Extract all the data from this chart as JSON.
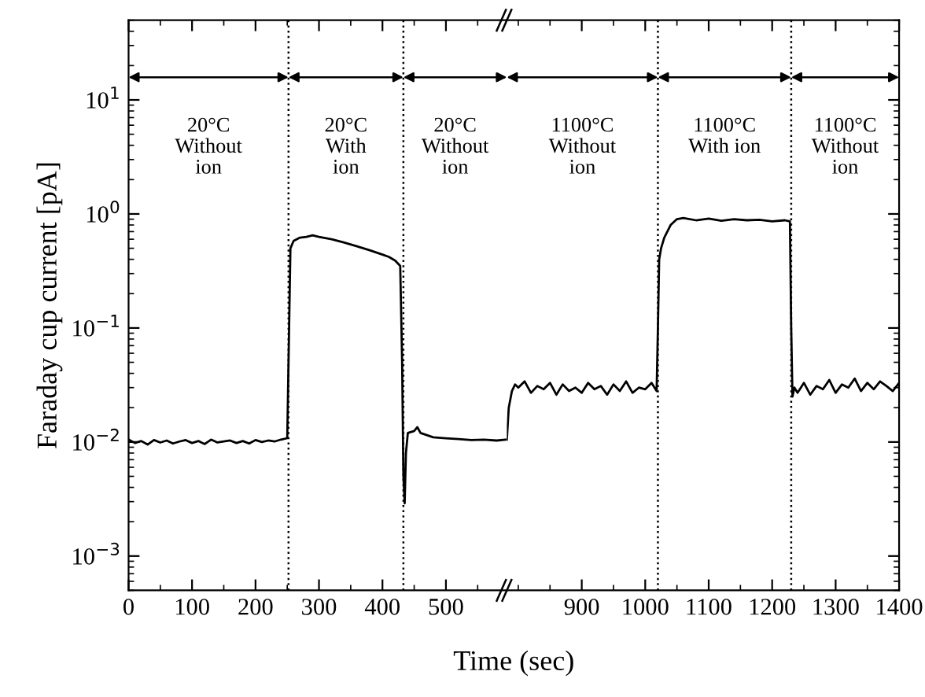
{
  "chart_data": [
    {
      "type": "line",
      "ylabel": "Faraday cup current [pA]",
      "xlabel": "Time (sec)",
      "log": "y",
      "xlim": [
        0,
        596
      ],
      "ylim": [
        0.0005,
        50
      ],
      "xticks": [
        0,
        100,
        200,
        300,
        400,
        500
      ],
      "yticks": [
        {
          "value": 0.001,
          "label": "10$^{−3}$"
        },
        {
          "value": 0.01,
          "label": "10$^{−2}$"
        },
        {
          "value": 0.1,
          "label": "10$^{−1}$"
        },
        {
          "value": 1,
          "label": "10$^{0}$"
        },
        {
          "value": 10,
          "label": "10$^{1}$"
        }
      ],
      "series": [
        {
          "color": "#000000",
          "x": [
            0,
            10,
            20,
            30,
            40,
            50,
            60,
            70,
            80,
            90,
            100,
            110,
            120,
            130,
            140,
            150,
            160,
            170,
            180,
            190,
            200,
            210,
            220,
            230,
            240,
            250,
            252,
            255,
            260,
            270,
            280,
            290,
            300,
            320,
            340,
            360,
            380,
            400,
            410,
            420,
            428,
            431,
            433,
            435,
            437,
            440,
            450,
            455,
            460,
            470,
            480,
            500,
            520,
            540,
            560,
            580,
            596
          ],
          "values": [
            0.0105,
            0.0098,
            0.0102,
            0.0095,
            0.0104,
            0.0099,
            0.0103,
            0.0097,
            0.0101,
            0.0104,
            0.0098,
            0.0102,
            0.0096,
            0.0105,
            0.0099,
            0.0101,
            0.0103,
            0.0098,
            0.0102,
            0.0097,
            0.0104,
            0.01,
            0.0103,
            0.0101,
            0.0105,
            0.0108,
            0.05,
            0.5,
            0.58,
            0.62,
            0.63,
            0.65,
            0.63,
            0.6,
            0.56,
            0.52,
            0.48,
            0.44,
            0.42,
            0.39,
            0.35,
            0.05,
            0.005,
            0.0029,
            0.008,
            0.012,
            0.0125,
            0.0135,
            0.012,
            0.0115,
            0.011,
            0.0108,
            0.0106,
            0.0104,
            0.0105,
            0.0103,
            0.0105
          ]
        }
      ],
      "ref_lines": [
        {
          "axis": "x",
          "value": 252,
          "line_style": "dotted",
          "color": "#000000"
        },
        {
          "axis": "x",
          "value": 433,
          "line_style": "dotted",
          "color": "#000000"
        }
      ],
      "annotations": [
        "20°C\nWithout\nion",
        "20°C\nWith\nion",
        "20°C\nWithout\nion"
      ]
    },
    {
      "type": "line",
      "log": "y",
      "xlim": [
        782,
        1400
      ],
      "ylim": [
        0.0005,
        50
      ],
      "tick_labels": "x",
      "xticks": [
        900,
        1000,
        1100,
        1200,
        1300,
        1400
      ],
      "yticks": [
        0.001,
        0.01,
        0.1,
        1,
        10
      ],
      "series": [
        {
          "color": "#000000",
          "x": [
            782,
            785,
            790,
            795,
            800,
            810,
            820,
            830,
            840,
            850,
            860,
            870,
            880,
            890,
            900,
            910,
            920,
            930,
            940,
            950,
            960,
            970,
            980,
            990,
            1000,
            1010,
            1018,
            1020,
            1022,
            1025,
            1030,
            1040,
            1050,
            1060,
            1080,
            1100,
            1120,
            1140,
            1160,
            1180,
            1200,
            1220,
            1228,
            1230,
            1232,
            1235,
            1240,
            1250,
            1260,
            1270,
            1280,
            1290,
            1300,
            1310,
            1320,
            1330,
            1340,
            1350,
            1360,
            1370,
            1380,
            1390,
            1400
          ],
          "values": [
            0.0105,
            0.02,
            0.028,
            0.032,
            0.03,
            0.034,
            0.027,
            0.031,
            0.029,
            0.033,
            0.026,
            0.032,
            0.028,
            0.03,
            0.027,
            0.033,
            0.029,
            0.031,
            0.026,
            0.032,
            0.028,
            0.034,
            0.027,
            0.03,
            0.029,
            0.033,
            0.028,
            0.1,
            0.4,
            0.5,
            0.62,
            0.8,
            0.9,
            0.92,
            0.88,
            0.91,
            0.87,
            0.9,
            0.88,
            0.89,
            0.86,
            0.88,
            0.86,
            0.1,
            0.025,
            0.03,
            0.027,
            0.033,
            0.026,
            0.031,
            0.029,
            0.035,
            0.027,
            0.032,
            0.03,
            0.036,
            0.028,
            0.033,
            0.029,
            0.034,
            0.031,
            0.028,
            0.033
          ]
        }
      ],
      "ref_lines": [
        {
          "axis": "x",
          "value": 1020,
          "line_style": "dotted",
          "color": "#000000"
        },
        {
          "axis": "x",
          "value": 1230,
          "line_style": "dotted",
          "color": "#000000"
        }
      ],
      "annotations": [
        "1100°C\nWithout\nion",
        "1100°C\nWith ion",
        "1100°C\nWithout\nion"
      ]
    }
  ]
}
